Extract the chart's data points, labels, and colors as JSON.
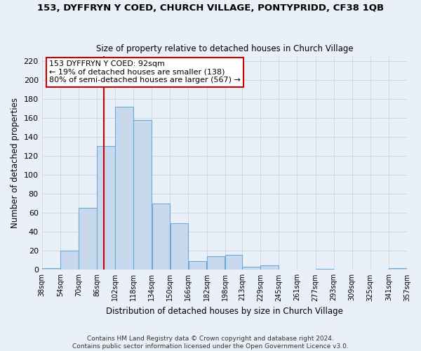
{
  "title": "153, DYFFRYN Y COED, CHURCH VILLAGE, PONTYPRIDD, CF38 1QB",
  "subtitle": "Size of property relative to detached houses in Church Village",
  "xlabel": "Distribution of detached houses by size in Church Village",
  "ylabel": "Number of detached properties",
  "bar_color": "#c8d9ee",
  "bar_edge_color": "#6aaad4",
  "bins": [
    38,
    54,
    70,
    86,
    102,
    118,
    134,
    150,
    166,
    182,
    198,
    213,
    229,
    245,
    261,
    277,
    293,
    309,
    325,
    341,
    357
  ],
  "counts": [
    2,
    20,
    65,
    130,
    172,
    158,
    70,
    49,
    9,
    14,
    16,
    3,
    5,
    0,
    0,
    1,
    0,
    0,
    0,
    2
  ],
  "property_line_x": 92,
  "annotation_line1": "153 DYFFRYN Y COED: 92sqm",
  "annotation_line2": "← 19% of detached houses are smaller (138)",
  "annotation_line3": "80% of semi-detached houses are larger (567) →",
  "annotation_box_color": "#ffffff",
  "annotation_box_edge_color": "#cc0000",
  "vline_color": "#cc0000",
  "ylim": [
    0,
    225
  ],
  "yticks": [
    0,
    20,
    40,
    60,
    80,
    100,
    120,
    140,
    160,
    180,
    200,
    220
  ],
  "xtick_labels": [
    "38sqm",
    "54sqm",
    "70sqm",
    "86sqm",
    "102sqm",
    "118sqm",
    "134sqm",
    "150sqm",
    "166sqm",
    "182sqm",
    "198sqm",
    "213sqm",
    "229sqm",
    "245sqm",
    "261sqm",
    "277sqm",
    "293sqm",
    "309sqm",
    "325sqm",
    "341sqm",
    "357sqm"
  ],
  "footer_line1": "Contains HM Land Registry data © Crown copyright and database right 2024.",
  "footer_line2": "Contains public sector information licensed under the Open Government Licence v3.0.",
  "grid_color": "#d0d8e8",
  "background_color": "#eaf0f8"
}
